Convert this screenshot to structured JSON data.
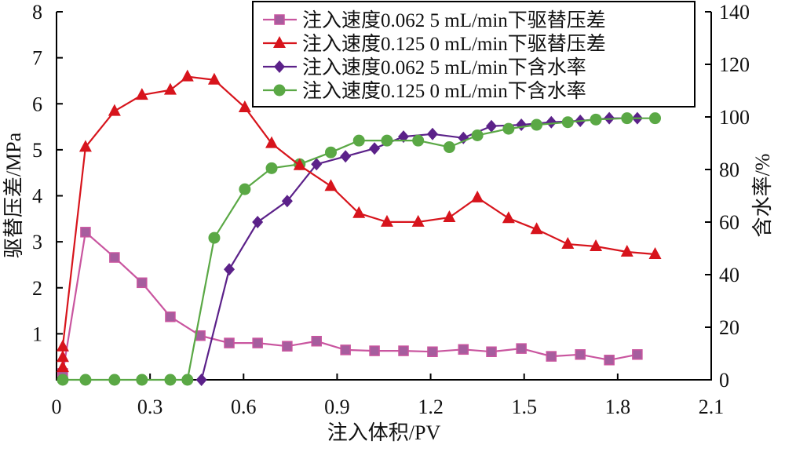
{
  "chart_data": {
    "type": "line",
    "title": "",
    "xlabel": "注入体积/PV",
    "ylabel": "驱替压差/MPa",
    "y2label": "含水率/%",
    "xlim": [
      0,
      2.1
    ],
    "ylim": [
      0,
      8
    ],
    "y2lim": [
      0,
      140
    ],
    "xticks": [
      "0",
      "0.3",
      "0.6",
      "0.9",
      "1.2",
      "1.5",
      "1.8",
      "2.1"
    ],
    "xtick_values": [
      0,
      0.3,
      0.6,
      0.9,
      1.2,
      1.5,
      1.8,
      2.1
    ],
    "yticks": [
      "1",
      "2",
      "3",
      "4",
      "5",
      "6",
      "7",
      "8"
    ],
    "ytick_values": [
      1,
      2,
      3,
      4,
      5,
      6,
      7,
      8
    ],
    "y2ticks": [
      "0",
      "20",
      "40",
      "60",
      "80",
      "100",
      "120",
      "140"
    ],
    "y2tick_values": [
      0,
      20,
      40,
      60,
      80,
      100,
      120,
      140
    ],
    "grid": false,
    "legend_position": "top-right",
    "series": [
      {
        "name": "注入速度0.062 5 mL/min下驱替压差",
        "axis": "left",
        "marker": "square",
        "color": "#c9559f",
        "marker_fill": "#a65d9e",
        "x": [
          0.02,
          0.093,
          0.186,
          0.274,
          0.365,
          0.461,
          0.554,
          0.645,
          0.74,
          0.834,
          0.927,
          1.02,
          1.113,
          1.206,
          1.305,
          1.395,
          1.491,
          1.587,
          1.68,
          1.773,
          1.863
        ],
        "y": [
          0.14,
          3.21,
          2.66,
          2.11,
          1.37,
          0.96,
          0.8,
          0.8,
          0.73,
          0.84,
          0.65,
          0.63,
          0.63,
          0.61,
          0.66,
          0.61,
          0.68,
          0.51,
          0.55,
          0.43,
          0.55
        ]
      },
      {
        "name": "注入速度0.125 0 mL/min下驱替压差",
        "axis": "left",
        "marker": "triangle",
        "color": "#d7141c",
        "marker_fill": "#d7141c",
        "x": [
          0.02,
          0.02,
          0.02,
          0.093,
          0.186,
          0.274,
          0.365,
          0.42,
          0.506,
          0.604,
          0.69,
          0.78,
          0.88,
          0.97,
          1.06,
          1.16,
          1.26,
          1.35,
          1.45,
          1.54,
          1.64,
          1.73,
          1.83,
          1.92
        ],
        "y": [
          0.27,
          0.49,
          0.72,
          5.06,
          5.84,
          6.19,
          6.3,
          6.59,
          6.52,
          5.92,
          5.14,
          4.66,
          4.21,
          3.62,
          3.43,
          3.43,
          3.53,
          3.96,
          3.51,
          3.27,
          2.95,
          2.9,
          2.78,
          2.73
        ]
      },
      {
        "name": "注入速度0.062 5 mL/min下含水率",
        "axis": "right",
        "marker": "diamond",
        "color": "#5b2189",
        "marker_fill": "#5b2189",
        "x": [
          0.465,
          0.554,
          0.645,
          0.74,
          0.834,
          0.927,
          1.02,
          1.113,
          1.206,
          1.305,
          1.395,
          1.491,
          1.587,
          1.68,
          1.773,
          1.863
        ],
        "y": [
          0,
          42,
          60,
          68,
          82,
          85,
          88,
          92.5,
          93.5,
          92,
          96.5,
          97,
          98,
          98.5,
          99.5,
          99.5
        ]
      },
      {
        "name": "注入速度0.125 0 mL/min下含水率",
        "axis": "right",
        "marker": "circle",
        "color": "#5aa845",
        "marker_fill": "#5aa845",
        "x": [
          0.02,
          0.093,
          0.186,
          0.274,
          0.365,
          0.42,
          0.506,
          0.604,
          0.69,
          0.78,
          0.88,
          0.97,
          1.06,
          1.16,
          1.26,
          1.35,
          1.45,
          1.54,
          1.64,
          1.73,
          1.83,
          1.92
        ],
        "y": [
          0,
          0,
          0,
          0,
          0,
          0,
          54,
          72.5,
          80.5,
          82,
          86.5,
          91,
          91,
          91,
          88.5,
          93,
          95.5,
          97,
          98,
          99,
          99.5,
          99.5
        ]
      }
    ]
  }
}
